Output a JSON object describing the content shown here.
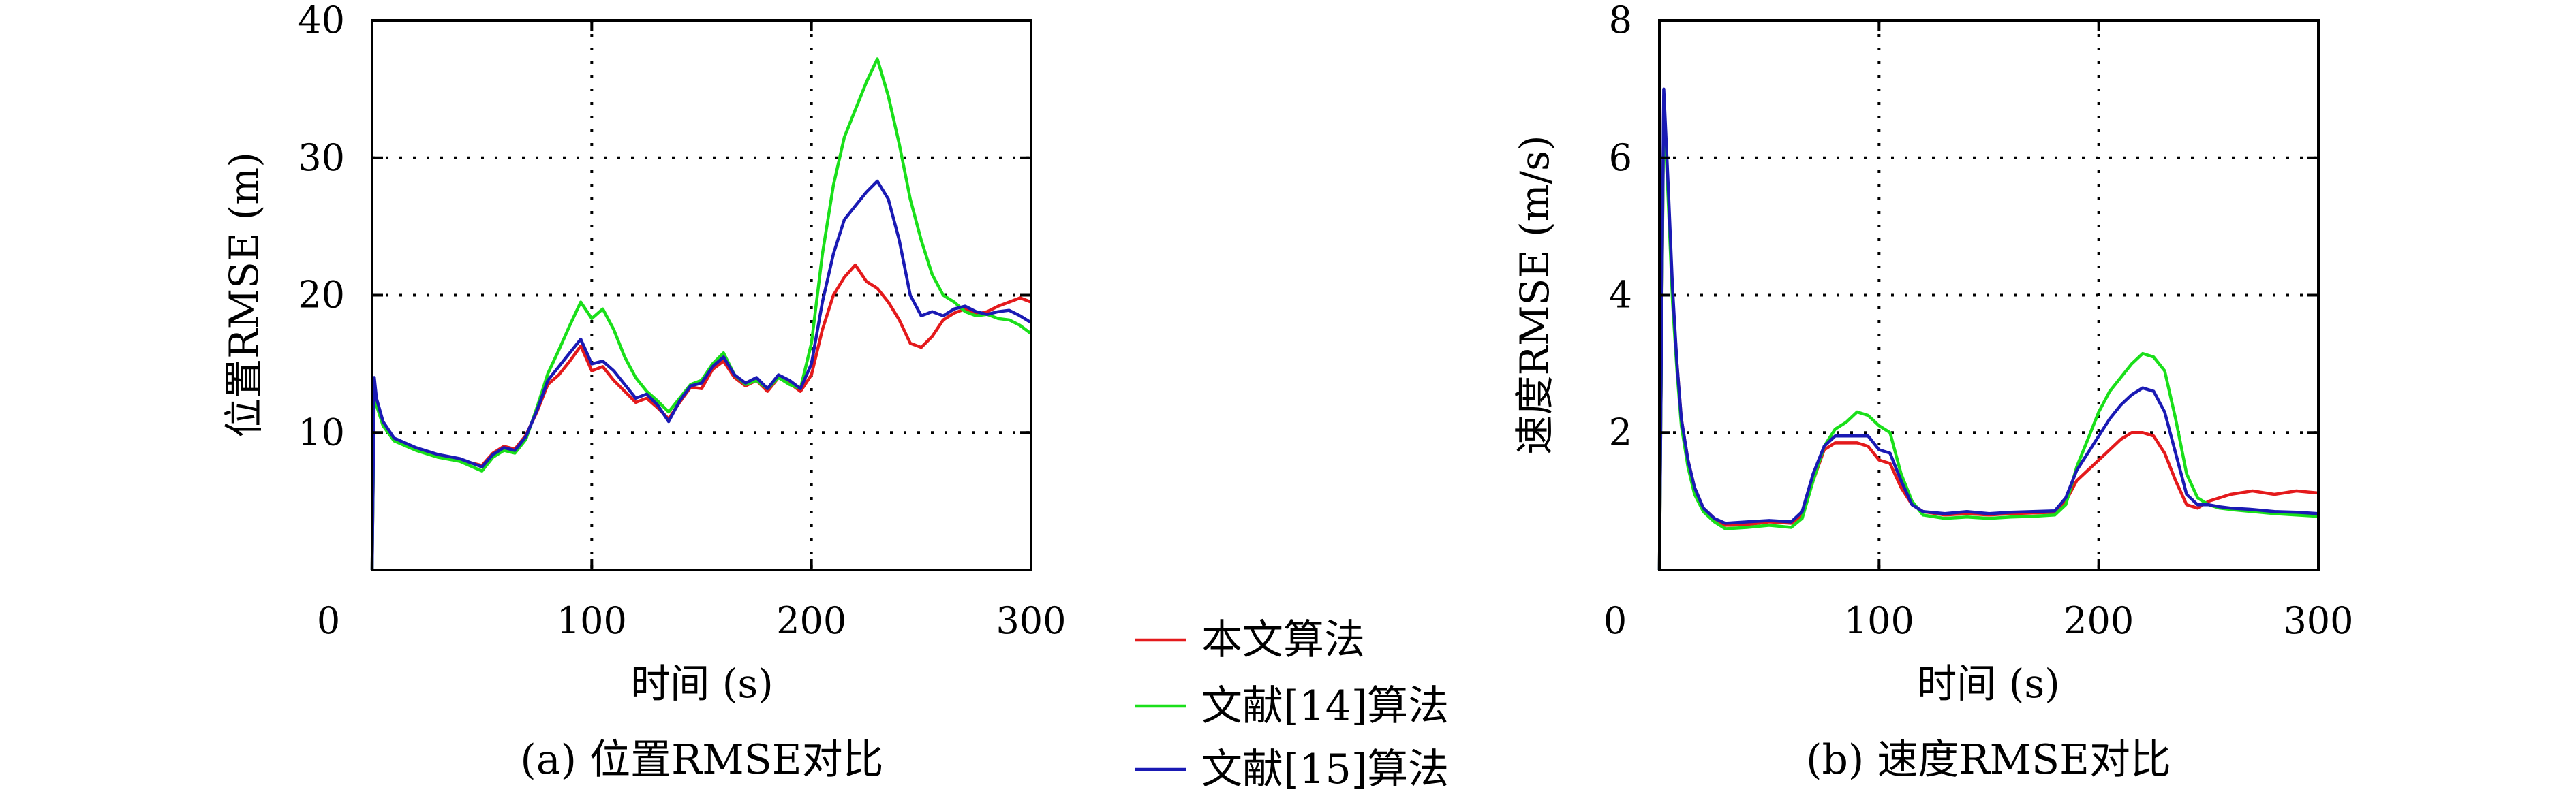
{
  "legend": {
    "entries": [
      {
        "label": "本文算法",
        "color": "#e41a1c"
      },
      {
        "label": "文献[14]算法",
        "color": "#1adf1a"
      },
      {
        "label": "文献[15]算法",
        "color": "#1a1ab4"
      }
    ]
  },
  "chart_data": [
    {
      "type": "line",
      "caption": "(a) 位置RMSE对比",
      "xlabel": "时间 (s)",
      "ylabel": "位置RMSE (m)",
      "xlim": [
        0,
        300
      ],
      "ylim": [
        0,
        40
      ],
      "xticks": [
        100,
        200,
        300
      ],
      "yticks": [
        10,
        20,
        30,
        40
      ],
      "corner_label": "0",
      "grid": true,
      "series": [
        {
          "name": "本文算法",
          "color": "#e41a1c",
          "x": [
            0,
            1,
            2,
            5,
            10,
            20,
            30,
            40,
            50,
            55,
            60,
            65,
            70,
            75,
            80,
            85,
            90,
            95,
            100,
            105,
            110,
            115,
            120,
            125,
            130,
            135,
            140,
            145,
            150,
            155,
            160,
            165,
            170,
            175,
            180,
            185,
            190,
            195,
            200,
            205,
            210,
            215,
            220,
            225,
            230,
            235,
            240,
            245,
            250,
            255,
            260,
            265,
            270,
            275,
            280,
            285,
            290,
            295,
            300
          ],
          "y": [
            0,
            13.5,
            12.2,
            10.5,
            9.5,
            8.8,
            8.3,
            8.0,
            7.6,
            8.5,
            9.0,
            8.8,
            9.8,
            11.5,
            13.5,
            14.2,
            15.2,
            16.3,
            14.5,
            14.8,
            13.8,
            13.0,
            12.2,
            12.5,
            11.8,
            11.0,
            12.2,
            13.3,
            13.2,
            14.6,
            15.2,
            14.0,
            13.4,
            13.8,
            13.0,
            14.0,
            13.6,
            13.0,
            14.2,
            17.5,
            20.0,
            21.3,
            22.2,
            21.0,
            20.5,
            19.5,
            18.2,
            16.5,
            16.2,
            17.0,
            18.2,
            18.7,
            19.0,
            18.6,
            18.8,
            19.2,
            19.5,
            19.8,
            19.5
          ]
        },
        {
          "name": "文献[14]算法",
          "color": "#1adf1a",
          "x": [
            0,
            1,
            2,
            5,
            10,
            20,
            30,
            40,
            50,
            55,
            60,
            65,
            70,
            75,
            80,
            85,
            90,
            95,
            100,
            105,
            110,
            115,
            120,
            125,
            130,
            135,
            140,
            145,
            150,
            155,
            160,
            165,
            170,
            175,
            180,
            185,
            190,
            195,
            200,
            205,
            210,
            215,
            220,
            225,
            230,
            235,
            240,
            245,
            250,
            255,
            260,
            265,
            270,
            275,
            280,
            285,
            290,
            295,
            300
          ],
          "y": [
            0,
            13.0,
            12.0,
            10.5,
            9.4,
            8.7,
            8.2,
            7.9,
            7.2,
            8.2,
            8.7,
            8.5,
            9.5,
            11.8,
            14.3,
            16.0,
            17.8,
            19.5,
            18.3,
            19.0,
            17.5,
            15.5,
            14.0,
            13.0,
            12.3,
            11.5,
            12.5,
            13.5,
            13.8,
            15.0,
            15.8,
            14.2,
            13.5,
            13.8,
            13.2,
            14.0,
            13.5,
            13.2,
            16.5,
            23.0,
            28.0,
            31.5,
            33.5,
            35.5,
            37.2,
            34.5,
            31.0,
            27.0,
            24.0,
            21.5,
            20.0,
            19.5,
            18.8,
            18.5,
            18.6,
            18.3,
            18.2,
            17.8,
            17.2
          ]
        },
        {
          "name": "文献[15]算法",
          "color": "#1a1ab4",
          "x": [
            0,
            1,
            2,
            5,
            10,
            20,
            30,
            40,
            50,
            55,
            60,
            65,
            70,
            75,
            80,
            85,
            90,
            95,
            100,
            105,
            110,
            115,
            120,
            125,
            130,
            135,
            140,
            145,
            150,
            155,
            160,
            165,
            170,
            175,
            180,
            185,
            190,
            195,
            200,
            205,
            210,
            215,
            220,
            225,
            230,
            235,
            240,
            245,
            250,
            255,
            260,
            265,
            270,
            275,
            280,
            285,
            290,
            295,
            300
          ],
          "y": [
            0,
            14.0,
            12.5,
            10.8,
            9.6,
            8.9,
            8.4,
            8.1,
            7.5,
            8.4,
            8.9,
            8.7,
            9.7,
            11.6,
            13.8,
            14.8,
            15.8,
            16.8,
            15.0,
            15.2,
            14.5,
            13.5,
            12.5,
            12.8,
            12.0,
            10.8,
            12.3,
            13.4,
            13.6,
            14.8,
            15.5,
            14.2,
            13.6,
            14.0,
            13.2,
            14.2,
            13.8,
            13.2,
            15.0,
            19.5,
            23.0,
            25.5,
            26.5,
            27.5,
            28.3,
            27.0,
            24.0,
            20.0,
            18.5,
            18.8,
            18.5,
            19.0,
            19.2,
            18.8,
            18.6,
            18.8,
            18.9,
            18.5,
            18.0
          ]
        }
      ]
    },
    {
      "type": "line",
      "caption": "(b) 速度RMSE对比",
      "xlabel": "时间 (s)",
      "ylabel": "速度RMSE (m/s)",
      "xlim": [
        0,
        300
      ],
      "ylim": [
        0,
        8
      ],
      "xticks": [
        100,
        200,
        300
      ],
      "yticks": [
        2,
        4,
        6,
        8
      ],
      "corner_label": "0",
      "grid": true,
      "series": [
        {
          "name": "本文算法",
          "color": "#e41a1c",
          "x": [
            0,
            2,
            4,
            6,
            8,
            10,
            13,
            16,
            20,
            25,
            30,
            40,
            50,
            60,
            65,
            70,
            75,
            80,
            85,
            90,
            95,
            100,
            105,
            110,
            115,
            120,
            130,
            140,
            150,
            160,
            170,
            180,
            185,
            190,
            195,
            200,
            205,
            210,
            215,
            220,
            225,
            230,
            235,
            240,
            245,
            250,
            255,
            260,
            270,
            280,
            290,
            300
          ],
          "y": [
            0,
            6.9,
            5.5,
            4.0,
            3.0,
            2.2,
            1.6,
            1.2,
            0.9,
            0.75,
            0.65,
            0.66,
            0.7,
            0.68,
            0.8,
            1.3,
            1.75,
            1.85,
            1.85,
            1.85,
            1.8,
            1.6,
            1.55,
            1.2,
            0.95,
            0.85,
            0.8,
            0.82,
            0.8,
            0.82,
            0.83,
            0.84,
            1.0,
            1.3,
            1.45,
            1.6,
            1.75,
            1.9,
            2.0,
            2.0,
            1.95,
            1.7,
            1.3,
            0.95,
            0.9,
            1.0,
            1.05,
            1.1,
            1.15,
            1.1,
            1.15,
            1.12
          ]
        },
        {
          "name": "文献[14]算法",
          "color": "#1adf1a",
          "x": [
            0,
            2,
            4,
            6,
            8,
            10,
            13,
            16,
            20,
            25,
            30,
            40,
            50,
            60,
            65,
            70,
            75,
            80,
            85,
            90,
            95,
            100,
            105,
            110,
            115,
            120,
            130,
            140,
            150,
            160,
            170,
            180,
            185,
            190,
            195,
            200,
            205,
            210,
            215,
            220,
            225,
            230,
            235,
            240,
            245,
            250,
            255,
            260,
            270,
            280,
            290,
            300
          ],
          "y": [
            0,
            6.8,
            5.4,
            3.9,
            2.9,
            2.1,
            1.5,
            1.1,
            0.85,
            0.7,
            0.6,
            0.62,
            0.65,
            0.62,
            0.75,
            1.3,
            1.8,
            2.05,
            2.15,
            2.3,
            2.25,
            2.1,
            2.0,
            1.4,
            1.0,
            0.8,
            0.75,
            0.77,
            0.75,
            0.77,
            0.78,
            0.8,
            0.95,
            1.5,
            1.9,
            2.3,
            2.6,
            2.8,
            3.0,
            3.15,
            3.1,
            2.9,
            2.2,
            1.4,
            1.05,
            0.95,
            0.9,
            0.88,
            0.85,
            0.82,
            0.8,
            0.78
          ]
        },
        {
          "name": "文献[15]算法",
          "color": "#1a1ab4",
          "x": [
            0,
            2,
            4,
            6,
            8,
            10,
            13,
            16,
            20,
            25,
            30,
            40,
            50,
            60,
            65,
            70,
            75,
            80,
            85,
            90,
            95,
            100,
            105,
            110,
            115,
            120,
            130,
            140,
            150,
            160,
            170,
            180,
            185,
            190,
            195,
            200,
            205,
            210,
            215,
            220,
            225,
            230,
            235,
            240,
            245,
            250,
            255,
            260,
            270,
            280,
            290,
            300
          ],
          "y": [
            0,
            7.0,
            5.6,
            4.1,
            3.0,
            2.2,
            1.6,
            1.2,
            0.9,
            0.75,
            0.68,
            0.7,
            0.72,
            0.7,
            0.85,
            1.4,
            1.8,
            1.95,
            1.95,
            1.95,
            1.95,
            1.75,
            1.7,
            1.3,
            0.95,
            0.85,
            0.82,
            0.85,
            0.82,
            0.84,
            0.85,
            0.86,
            1.05,
            1.45,
            1.7,
            1.95,
            2.2,
            2.4,
            2.55,
            2.65,
            2.6,
            2.3,
            1.7,
            1.1,
            0.95,
            0.95,
            0.92,
            0.9,
            0.88,
            0.85,
            0.84,
            0.82
          ]
        }
      ]
    }
  ]
}
